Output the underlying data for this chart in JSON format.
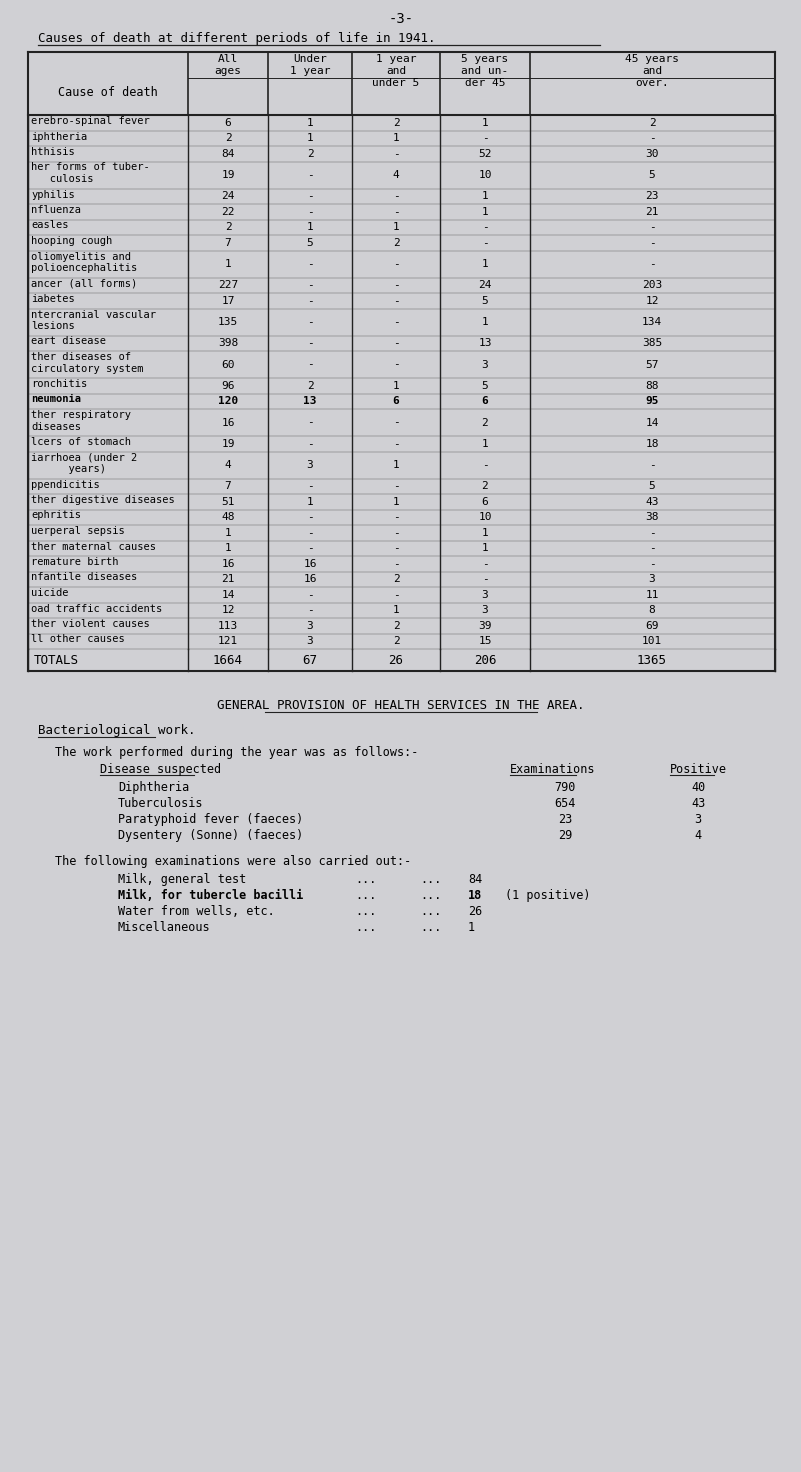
{
  "page_number": "-3-",
  "title": "Causes of death at different periods of life in 1941.",
  "bg_color": "#d0d0d4",
  "table_rows": [
    {
      "cause": "erebro-spinal fever",
      "all": "6",
      "u1": "1",
      "1to5": "2",
      "5to45": "1",
      "45p": "2",
      "multiline": false
    },
    {
      "cause": "iphtheria",
      "all": "2",
      "u1": "1",
      "1to5": "1",
      "5to45": "-",
      "45p": "-",
      "multiline": false
    },
    {
      "cause": "hthisis",
      "all": "84",
      "u1": "2",
      "1to5": "-",
      "5to45": "52",
      "45p": "30",
      "multiline": false
    },
    {
      "cause": "her forms of tuber-\n   culosis",
      "all": "19",
      "u1": "-",
      "1to5": "4",
      "5to45": "10",
      "45p": "5",
      "multiline": true
    },
    {
      "cause": "yphilis",
      "all": "24",
      "u1": "-",
      "1to5": "-",
      "5to45": "1",
      "45p": "23",
      "multiline": false
    },
    {
      "cause": "nfluenza",
      "all": "22",
      "u1": "-",
      "1to5": "-",
      "5to45": "1",
      "45p": "21",
      "multiline": false
    },
    {
      "cause": "easles",
      "all": "2",
      "u1": "1",
      "1to5": "1",
      "5to45": "-",
      "45p": "-",
      "multiline": false
    },
    {
      "cause": "hooping cough",
      "all": "7",
      "u1": "5",
      "1to5": "2",
      "5to45": "-",
      "45p": "-",
      "multiline": false
    },
    {
      "cause": "oliomyelitis and\npolioencephalitis",
      "all": "1",
      "u1": "-",
      "1to5": "-",
      "5to45": "1",
      "45p": "-",
      "multiline": true
    },
    {
      "cause": "ancer (all forms)",
      "all": "227",
      "u1": "-",
      "1to5": "-",
      "5to45": "24",
      "45p": "203",
      "multiline": false
    },
    {
      "cause": "iabetes",
      "all": "17",
      "u1": "-",
      "1to5": "-",
      "5to45": "5",
      "45p": "12",
      "multiline": false
    },
    {
      "cause": "ntercranial vascular\nlesions",
      "all": "135",
      "u1": "-",
      "1to5": "-",
      "5to45": "1",
      "45p": "134",
      "multiline": true
    },
    {
      "cause": "eart disease",
      "all": "398",
      "u1": "-",
      "1to5": "-",
      "5to45": "13",
      "45p": "385",
      "multiline": false
    },
    {
      "cause": "ther diseases of\ncirculatory system",
      "all": "60",
      "u1": "-",
      "1to5": "-",
      "5to45": "3",
      "45p": "57",
      "multiline": true
    },
    {
      "cause": "ronchitis",
      "all": "96",
      "u1": "2",
      "1to5": "1",
      "5to45": "5",
      "45p": "88",
      "multiline": false
    },
    {
      "cause": "neumonia",
      "all": "120",
      "u1": "13",
      "1to5": "6",
      "5to45": "6",
      "45p": "95",
      "multiline": false,
      "bold": true
    },
    {
      "cause": "ther respiratory\ndiseases",
      "all": "16",
      "u1": "-",
      "1to5": "-",
      "5to45": "2",
      "45p": "14",
      "multiline": true
    },
    {
      "cause": "lcers of stomach",
      "all": "19",
      "u1": "-",
      "1to5": "-",
      "5to45": "1",
      "45p": "18",
      "multiline": false
    },
    {
      "cause": "iarrhoea (under 2\n      years)",
      "all": "4",
      "u1": "3",
      "1to5": "1",
      "5to45": "-",
      "45p": "-",
      "multiline": true
    },
    {
      "cause": "ppendicitis",
      "all": "7",
      "u1": "-",
      "1to5": "-",
      "5to45": "2",
      "45p": "5",
      "multiline": false
    },
    {
      "cause": "ther digestive diseases",
      "all": "51",
      "u1": "1",
      "1to5": "1",
      "5to45": "6",
      "45p": "43",
      "multiline": false
    },
    {
      "cause": "ephritis",
      "all": "48",
      "u1": "-",
      "1to5": "-",
      "5to45": "10",
      "45p": "38",
      "multiline": false
    },
    {
      "cause": "uerperal sepsis",
      "all": "1",
      "u1": "-",
      "1to5": "-",
      "5to45": "1",
      "45p": "-",
      "multiline": false
    },
    {
      "cause": "ther maternal causes",
      "all": "1",
      "u1": "-",
      "1to5": "-",
      "5to45": "1",
      "45p": "-",
      "multiline": false
    },
    {
      "cause": "remature birth",
      "all": "16",
      "u1": "16",
      "1to5": "-",
      "5to45": "-",
      "45p": "-",
      "multiline": false
    },
    {
      "cause": "nfantile diseases",
      "all": "21",
      "u1": "16",
      "1to5": "2",
      "5to45": "-",
      "45p": "3",
      "multiline": false
    },
    {
      "cause": "uicide",
      "all": "14",
      "u1": "-",
      "1to5": "-",
      "5to45": "3",
      "45p": "11",
      "multiline": false
    },
    {
      "cause": "oad traffic accidents",
      "all": "12",
      "u1": "-",
      "1to5": "1",
      "5to45": "3",
      "45p": "8",
      "multiline": false
    },
    {
      "cause": "ther violent causes",
      "all": "113",
      "u1": "3",
      "1to5": "2",
      "5to45": "39",
      "45p": "69",
      "multiline": false
    },
    {
      "cause": "ll other causes",
      "all": "121",
      "u1": "3",
      "1to5": "2",
      "5to45": "15",
      "45p": "101",
      "multiline": false
    }
  ],
  "totals": [
    "TOTALS",
    "1664",
    "67",
    "26",
    "206",
    "1365"
  ],
  "section2_title": "GENERAL PROVISION OF HEALTH SERVICES IN THE AREA.",
  "section2_sub": "Bacteriological work.",
  "section2_intro": "The work performed during the year was as follows:-",
  "bact_col1_header": "Disease suspected",
  "bact_col2_header": "Examinations",
  "bact_col3_header": "Positive",
  "bact_rows": [
    [
      "Diphtheria",
      "790",
      "40"
    ],
    [
      "Tuberculosis",
      "654",
      "43"
    ],
    [
      "Paratyphoid fever (faeces)",
      "23",
      "3"
    ],
    [
      "Dysentery (Sonne) (faeces)",
      "29",
      "4"
    ]
  ],
  "followup_intro": "The following examinations were also carried out:-",
  "followup_rows": [
    [
      "Milk, general test",
      "...",
      "...",
      "84",
      ""
    ],
    [
      "Milk, for tubercle bacilli",
      "...",
      "...",
      "18",
      "(1 positive)"
    ],
    [
      "Water from wells, etc.",
      "...",
      "...",
      "26",
      ""
    ],
    [
      "Miscellaneous",
      "...",
      "...",
      "1",
      ""
    ]
  ]
}
